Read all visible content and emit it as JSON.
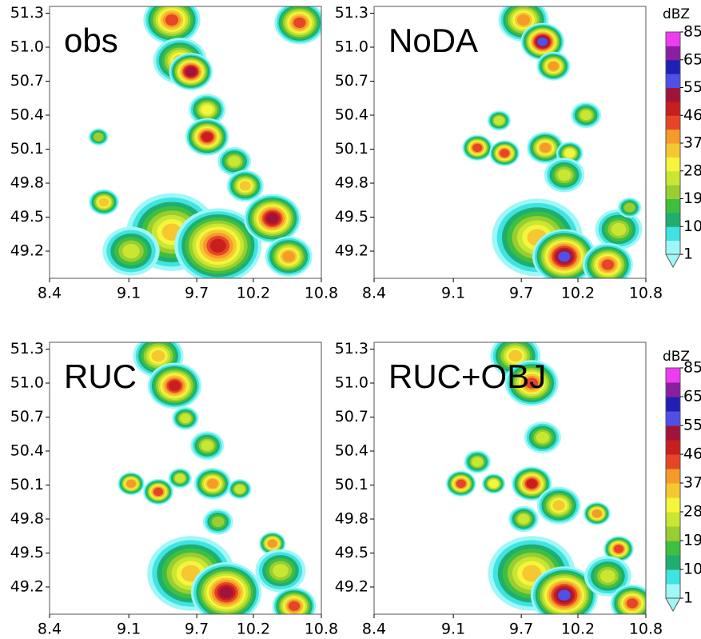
{
  "chart_data": [
    {
      "type": "contour",
      "title": "obs",
      "xlim": [
        8.4,
        10.8
      ],
      "ylim": [
        48.96,
        51.36
      ],
      "xticks": [
        8.4,
        9.1,
        9.7,
        10.2,
        10.8
      ],
      "yticks": [
        49.2,
        49.5,
        49.8,
        50.1,
        50.4,
        50.7,
        {
          "value": 51,
          "label": "51.0"
        },
        51.3
      ]
    },
    {
      "type": "contour",
      "title": "NoDA",
      "xlim": [
        8.4,
        10.8
      ],
      "ylim": [
        48.96,
        51.36
      ],
      "xticks": [
        8.4,
        9.1,
        9.7,
        10.2,
        10.8
      ],
      "yticks": [
        49.2,
        49.5,
        49.8,
        50.1,
        50.4,
        50.7,
        {
          "value": 51,
          "label": "51.0"
        },
        51.3
      ],
      "colorbar": {
        "label": "dBZ",
        "ticks": [
          1,
          10,
          19,
          28,
          37,
          46,
          55,
          65,
          85
        ],
        "colors": [
          "#9ff7f7",
          "#3fe3e3",
          "#1fae6f",
          "#3fbf3f",
          "#9acd32",
          "#c8e632",
          "#f5f53c",
          "#f5c832",
          "#f59b28",
          "#e64628",
          "#c81e1e",
          "#a0143c",
          "#5050e6",
          "#2020b4",
          "#8c1ea0",
          "#f03cf0"
        ]
      }
    },
    {
      "type": "contour",
      "title": "RUC",
      "xlim": [
        8.4,
        10.8
      ],
      "ylim": [
        48.96,
        51.36
      ],
      "xticks": [
        8.4,
        9.1,
        9.7,
        10.2,
        10.8
      ],
      "yticks": [
        49.2,
        49.5,
        49.8,
        50.1,
        50.4,
        50.7,
        {
          "value": 51,
          "label": "51.0"
        },
        51.3
      ]
    },
    {
      "type": "contour",
      "title": "RUC+OBJ",
      "xlim": [
        8.4,
        10.8
      ],
      "ylim": [
        48.96,
        51.36
      ],
      "xticks": [
        8.4,
        9.1,
        9.7,
        10.2,
        10.8
      ],
      "yticks": [
        49.2,
        49.5,
        49.8,
        50.1,
        50.4,
        50.7,
        {
          "value": 51,
          "label": "51.0"
        },
        51.3
      ],
      "colorbar": {
        "label": "dBZ",
        "ticks": [
          1,
          10,
          19,
          28,
          37,
          46,
          55,
          65,
          85
        ],
        "colors": [
          "#9ff7f7",
          "#3fe3e3",
          "#1fae6f",
          "#3fbf3f",
          "#9acd32",
          "#c8e632",
          "#f5f53c",
          "#f5c832",
          "#f59b28",
          "#e64628",
          "#c81e1e",
          "#a0143c",
          "#5050e6",
          "#2020b4",
          "#8c1ea0",
          "#f03cf0"
        ]
      }
    }
  ]
}
